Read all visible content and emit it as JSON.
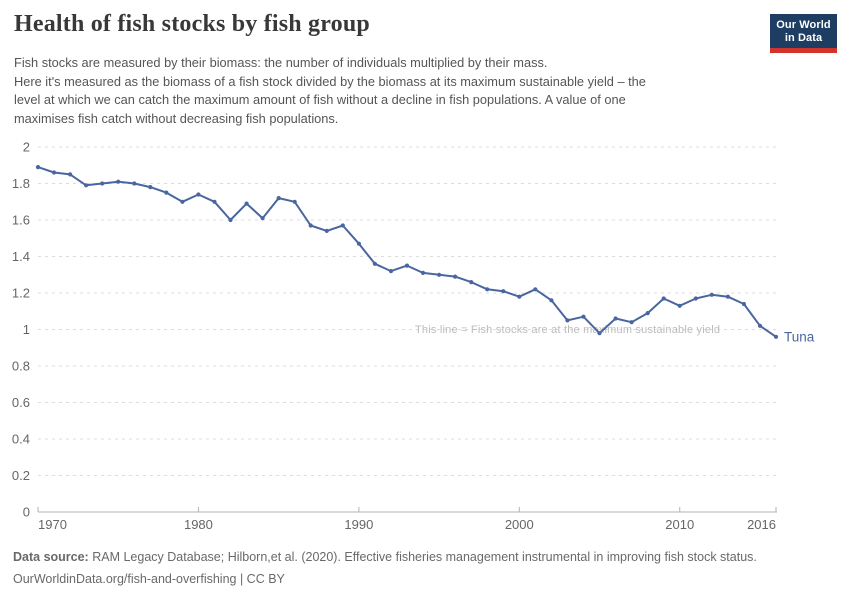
{
  "header": {
    "title": "Health of fish stocks by fish group",
    "logo_line1": "Our World",
    "logo_line2": "in Data",
    "subtitle": "Fish stocks are measured by their biomass: the number of individuals multiplied by their mass.\nHere it's measured as the biomass of a fish stock divided by the biomass at its maximum sustainable yield – the\nlevel at which we can catch the maximum amount of fish without a decline in fish populations. A value of one\nmaximises fish catch without decreasing fish populations."
  },
  "chart_data": {
    "type": "line",
    "title": "Health of fish stocks by fish group",
    "xlabel": "",
    "ylabel": "",
    "xlim": [
      1970,
      2016
    ],
    "ylim": [
      0,
      2
    ],
    "grid": "horizontal-dashed",
    "legend_position": "end-of-line-label",
    "x_ticks": [
      1970,
      1980,
      1990,
      2000,
      2010,
      2016
    ],
    "y_ticks": [
      0,
      0.2,
      0.4,
      0.6,
      0.8,
      1,
      1.2,
      1.4,
      1.6,
      1.8,
      2
    ],
    "annotation": {
      "text": "This line = Fish stocks are at the maximum sustainable yield",
      "y": 1,
      "x_start_year": 1993.5
    },
    "series": [
      {
        "name": "Tuna",
        "x": [
          1970,
          1971,
          1972,
          1973,
          1974,
          1975,
          1976,
          1977,
          1978,
          1979,
          1980,
          1981,
          1982,
          1983,
          1984,
          1985,
          1986,
          1987,
          1988,
          1989,
          1990,
          1991,
          1992,
          1993,
          1994,
          1995,
          1996,
          1997,
          1998,
          1999,
          2000,
          2001,
          2002,
          2003,
          2004,
          2005,
          2006,
          2007,
          2008,
          2009,
          2010,
          2011,
          2012,
          2013,
          2014,
          2015,
          2016
        ],
        "values": [
          1.89,
          1.86,
          1.85,
          1.79,
          1.8,
          1.81,
          1.8,
          1.78,
          1.75,
          1.7,
          1.74,
          1.7,
          1.6,
          1.69,
          1.61,
          1.72,
          1.7,
          1.57,
          1.54,
          1.57,
          1.47,
          1.36,
          1.32,
          1.35,
          1.31,
          1.3,
          1.29,
          1.26,
          1.22,
          1.21,
          1.18,
          1.22,
          1.16,
          1.05,
          1.07,
          0.98,
          1.06,
          1.04,
          1.09,
          1.17,
          1.13,
          1.17,
          1.19,
          1.18,
          1.14,
          1.02,
          0.96
        ]
      }
    ]
  },
  "footer": {
    "source_label": "Data source:",
    "source_text": " RAM Legacy Database; Hilborn,et al. (2020). Effective fisheries management instrumental in improving fish stock status.",
    "link_line": "OurWorldinData.org/fish-and-overfishing | CC BY"
  },
  "colors": {
    "line": "#4a66a0",
    "grid": "#dddddd",
    "axis": "#b3b3b3",
    "axis_label": "#666666",
    "annotation": "#bcbcbc",
    "title": "#383838",
    "subtitle": "#555555",
    "footer": "#696969",
    "logo_bg": "#1d3d63",
    "logo_red": "#d0342c",
    "background": "#ffffff"
  }
}
